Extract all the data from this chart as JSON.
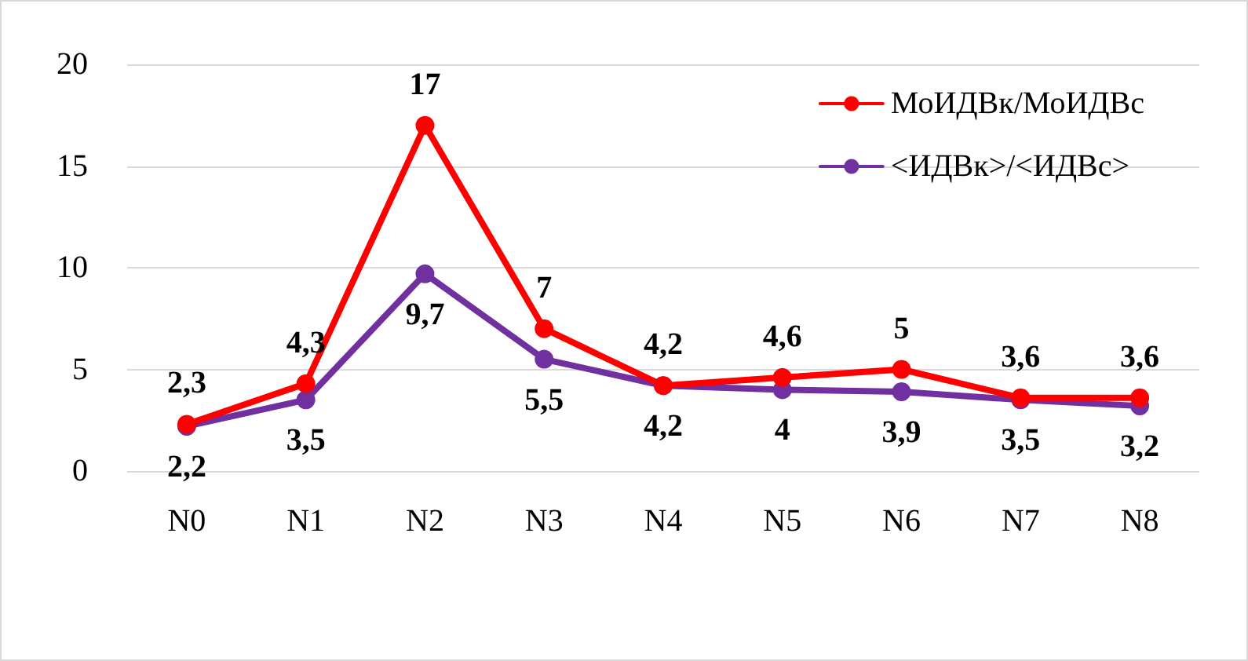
{
  "chart_data": {
    "type": "line",
    "categories": [
      "N0",
      "N1",
      "N2",
      "N3",
      "N4",
      "N5",
      "N6",
      "N7",
      "N8"
    ],
    "series": [
      {
        "name": "МоИДВк/МоИДВс",
        "color": "#ff0000",
        "values": [
          2.3,
          4.3,
          17,
          7,
          4.2,
          4.6,
          5,
          3.6,
          3.6
        ],
        "value_labels": [
          "2,3",
          "4,3",
          "17",
          "7",
          "4,2",
          "4,6",
          "5",
          "3,6",
          "3,6"
        ]
      },
      {
        "name": "<ИДВк>/<ИДВс>",
        "color": "#7030a0",
        "values": [
          2.2,
          3.5,
          9.7,
          5.5,
          4.2,
          4,
          3.9,
          3.5,
          3.2
        ],
        "value_labels": [
          "2,2",
          "3,5",
          "9,7",
          "5,5",
          "4,2",
          "4",
          "3,9",
          "3,5",
          "3,2"
        ]
      }
    ],
    "ylim": [
      0,
      20
    ],
    "yticks": [
      0,
      5,
      10,
      15,
      20
    ],
    "grid": "y",
    "legend": "top right",
    "marker": "circle",
    "line_style": "solid"
  }
}
